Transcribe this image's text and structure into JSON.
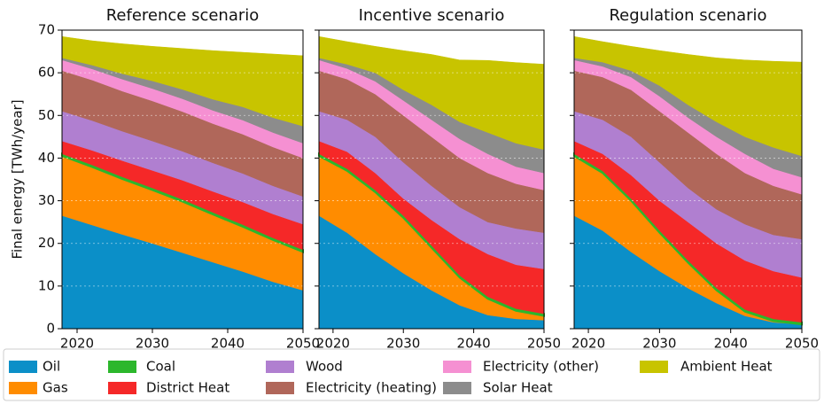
{
  "chart_data": [
    {
      "type": "stacked_area",
      "title": "Reference scenario",
      "ylabel": "Final energy [TWh/year]",
      "x": [
        2018,
        2022,
        2026,
        2030,
        2034,
        2038,
        2042,
        2046,
        2050
      ],
      "xlim": [
        2018,
        2050
      ],
      "xticks": [
        2020,
        2030,
        2040,
        2050
      ],
      "ylim": [
        0,
        70
      ],
      "yticks": [
        0,
        10,
        20,
        30,
        40,
        50,
        60,
        70
      ],
      "ytick_labels": true,
      "grid": true,
      "series": [
        {
          "name": "Oil",
          "color": "#0b8fc8",
          "values": [
            26.5,
            24.3,
            22.1,
            20.0,
            17.8,
            15.6,
            13.4,
            11.0,
            9
          ]
        },
        {
          "name": "Gas",
          "color": "#ff8c00",
          "values": [
            14,
            13.6,
            13.0,
            12.5,
            12,
            11.2,
            10.5,
            9.8,
            9
          ]
        },
        {
          "name": "Coal",
          "color": "#2cb72c",
          "values": [
            0.5,
            0.5,
            0.5,
            0.5,
            0.5,
            0.5,
            0.5,
            0.5,
            0.5
          ]
        },
        {
          "name": "District Heat",
          "color": "#f52828",
          "values": [
            3,
            3.4,
            3.8,
            4.1,
            4.5,
            4.9,
            5.3,
            5.6,
            6
          ]
        },
        {
          "name": "Wood",
          "color": "#b07fd0",
          "values": [
            7,
            7,
            6.9,
            6.9,
            6.8,
            6.7,
            6.7,
            6.6,
            6.5
          ]
        },
        {
          "name": "Electricity (heating)",
          "color": "#b0675a",
          "values": [
            9.5,
            9.5,
            9.4,
            9.4,
            9.3,
            9.2,
            9.2,
            9.1,
            9
          ]
        },
        {
          "name": "Electricity (other)",
          "color": "#f590d2",
          "values": [
            2.5,
            2.6,
            2.8,
            2.9,
            3.0,
            3.1,
            3.3,
            3.4,
            3.5
          ]
        },
        {
          "name": "Solar Heat",
          "color": "#8c8c8c",
          "values": [
            0.5,
            0.9,
            1.3,
            1.8,
            2.2,
            2.6,
            3.1,
            3.5,
            4
          ]
        },
        {
          "name": "Ambient Heat",
          "color": "#c8c400",
          "values": [
            5,
            5.7,
            7.0,
            8.1,
            9.6,
            11.4,
            12.8,
            14.9,
            16.5
          ]
        }
      ]
    },
    {
      "type": "stacked_area",
      "title": "Incentive scenario",
      "x": [
        2018,
        2022,
        2026,
        2030,
        2034,
        2038,
        2042,
        2046,
        2050
      ],
      "xlim": [
        2018,
        2050
      ],
      "xticks": [
        2020,
        2030,
        2040,
        2050
      ],
      "ylim": [
        0,
        70
      ],
      "yticks": [
        0,
        10,
        20,
        30,
        40,
        50,
        60,
        70
      ],
      "ytick_labels": false,
      "grid": true,
      "series": [
        {
          "name": "Oil",
          "color": "#0b8fc8",
          "values": [
            26.5,
            22.5,
            17.5,
            13,
            9,
            5.5,
            3.2,
            2.3,
            2
          ]
        },
        {
          "name": "Gas",
          "color": "#ff8c00",
          "values": [
            14,
            14.5,
            14.5,
            13,
            10,
            6.5,
            3.8,
            1.9,
            1
          ]
        },
        {
          "name": "Coal",
          "color": "#2cb72c",
          "values": [
            0.5,
            0.5,
            0.5,
            0.5,
            0.5,
            0.5,
            0.5,
            0.5,
            0.5
          ]
        },
        {
          "name": "District Heat",
          "color": "#f52828",
          "values": [
            3,
            4,
            4,
            4,
            6,
            8.5,
            10,
            10.3,
            10.5
          ]
        },
        {
          "name": "Wood",
          "color": "#b07fd0",
          "values": [
            7,
            7.5,
            8.5,
            8.5,
            8,
            7.5,
            7.5,
            8.5,
            8.5
          ]
        },
        {
          "name": "Electricity (heating)",
          "color": "#b0675a",
          "values": [
            9.5,
            9.5,
            10,
            11,
            11.5,
            11.5,
            11.5,
            10.5,
            10
          ]
        },
        {
          "name": "Electricity (other)",
          "color": "#f590d2",
          "values": [
            2.5,
            2.5,
            3,
            3.5,
            4,
            4.5,
            4.5,
            4,
            4
          ]
        },
        {
          "name": "Solar Heat",
          "color": "#8c8c8c",
          "values": [
            0.5,
            1,
            2,
            2.5,
            3.5,
            4,
            5,
            5.5,
            5.5
          ]
        },
        {
          "name": "Ambient Heat",
          "color": "#c8c400",
          "values": [
            5,
            5.3,
            6.2,
            9.2,
            11.8,
            14.5,
            16.9,
            18.9,
            20
          ]
        }
      ]
    },
    {
      "type": "stacked_area",
      "title": "Regulation scenario",
      "x": [
        2018,
        2022,
        2026,
        2030,
        2034,
        2038,
        2042,
        2046,
        2050
      ],
      "xlim": [
        2018,
        2050
      ],
      "xticks": [
        2020,
        2030,
        2040,
        2050
      ],
      "ylim": [
        0,
        70
      ],
      "yticks": [
        0,
        10,
        20,
        30,
        40,
        50,
        60,
        70
      ],
      "ytick_labels": false,
      "grid": true,
      "series": [
        {
          "name": "Oil",
          "color": "#0b8fc8",
          "values": [
            26.5,
            23,
            18,
            13.5,
            9.5,
            6,
            3,
            1.5,
            1
          ]
        },
        {
          "name": "Gas",
          "color": "#ff8c00",
          "values": [
            14,
            13.5,
            12,
            9,
            6,
            3,
            1,
            0.3,
            0
          ]
        },
        {
          "name": "Coal",
          "color": "#2cb72c",
          "values": [
            0.5,
            0.5,
            0.5,
            0.5,
            0.5,
            0.5,
            0.5,
            0.5,
            0.5
          ]
        },
        {
          "name": "District Heat",
          "color": "#f52828",
          "values": [
            3,
            4,
            5.5,
            7,
            9,
            10.5,
            11.5,
            11.2,
            10.5
          ]
        },
        {
          "name": "Wood",
          "color": "#b07fd0",
          "values": [
            7,
            8,
            9,
            9,
            8,
            8,
            8.5,
            8.5,
            9
          ]
        },
        {
          "name": "Electricity (heating)",
          "color": "#b0675a",
          "values": [
            9.5,
            10,
            11,
            12,
            13,
            13,
            12,
            11.5,
            10.5
          ]
        },
        {
          "name": "Electricity (other)",
          "color": "#f590d2",
          "values": [
            2.5,
            2.5,
            3,
            3.5,
            3.5,
            4,
            4.5,
            4,
            4
          ]
        },
        {
          "name": "Solar Heat",
          "color": "#8c8c8c",
          "values": [
            0.5,
            1,
            1.5,
            2.5,
            3,
            3.5,
            4,
            5,
            5
          ]
        },
        {
          "name": "Ambient Heat",
          "color": "#c8c400",
          "values": [
            5,
            4.8,
            5.7,
            8.2,
            11.8,
            15,
            18,
            20.2,
            22
          ]
        }
      ]
    }
  ]
}
